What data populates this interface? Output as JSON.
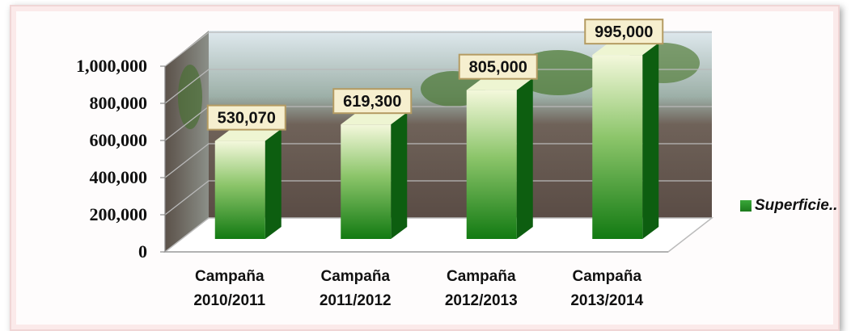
{
  "chart_data": {
    "type": "bar",
    "categories": [
      [
        "Campaña",
        "2010/2011"
      ],
      [
        "Campaña",
        "2011/2012"
      ],
      [
        "Campaña",
        "2012/2013"
      ],
      [
        "Campaña",
        "2013/2014"
      ]
    ],
    "series": [
      {
        "name": "Superficie..",
        "values": [
          530070,
          619300,
          805000,
          995000
        ]
      }
    ],
    "data_labels": [
      "530,070",
      "619,300",
      "805,000",
      "995,000"
    ],
    "y_ticks": [
      "0",
      "200,000",
      "400,000",
      "600,000",
      "800,000",
      "1,000,000"
    ],
    "ylim": [
      0,
      1000000
    ],
    "legend_position": "right",
    "grid": true,
    "colors": {
      "bar_top": "#f2f7d8",
      "bar_mid": "#5fae3c",
      "bar_bottom": "#127a12",
      "bar_side": "#0d5e10",
      "label_box": "#f6efcf",
      "label_border": "#b49b62"
    }
  }
}
